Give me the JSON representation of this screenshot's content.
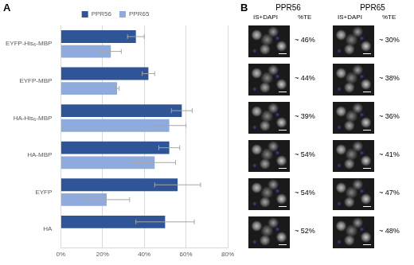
{
  "chart_data": {
    "type": "bar",
    "orientation": "horizontal",
    "annotations": [
      "A"
    ],
    "categories": [
      "EYFP-His₆-MBP",
      "EYFP-MBP",
      "HA-His₆-MBP",
      "HA-MBP",
      "EYFP",
      "HA"
    ],
    "series": [
      {
        "name": "PPR56",
        "color": "#2F5597",
        "values": [
          36,
          42,
          58,
          52,
          56,
          50
        ],
        "errors": [
          4,
          3,
          5,
          5,
          11,
          14
        ]
      },
      {
        "name": "PPR65",
        "color": "#8FAADC",
        "values": [
          24,
          27,
          52,
          45,
          22,
          0
        ],
        "errors": [
          5,
          1,
          8,
          10,
          11,
          0
        ]
      }
    ],
    "xlim": [
      0,
      80
    ],
    "xticks": [
      {
        "value": 0,
        "label": "0%"
      },
      {
        "value": 20,
        "label": "20%"
      },
      {
        "value": 40,
        "label": "40%"
      },
      {
        "value": 60,
        "label": "60%"
      },
      {
        "value": 80,
        "label": "80%"
      }
    ],
    "grid": true,
    "legend": "top"
  },
  "panel_b": {
    "label": "B",
    "columns": [
      {
        "title": "PPR56",
        "image_label": "IS+DAPI",
        "value_label": "%TE",
        "values": [
          "~ 46%",
          "~ 44%",
          "~ 39%",
          "~ 54%",
          "~ 54%",
          "~ 52%"
        ]
      },
      {
        "title": "PPR65",
        "image_label": "IS+DAPI",
        "value_label": "%TE",
        "values": [
          "~ 30%",
          "~ 38%",
          "~ 36%",
          "~ 41%",
          "~ 47%",
          "~ 48%"
        ]
      }
    ]
  }
}
